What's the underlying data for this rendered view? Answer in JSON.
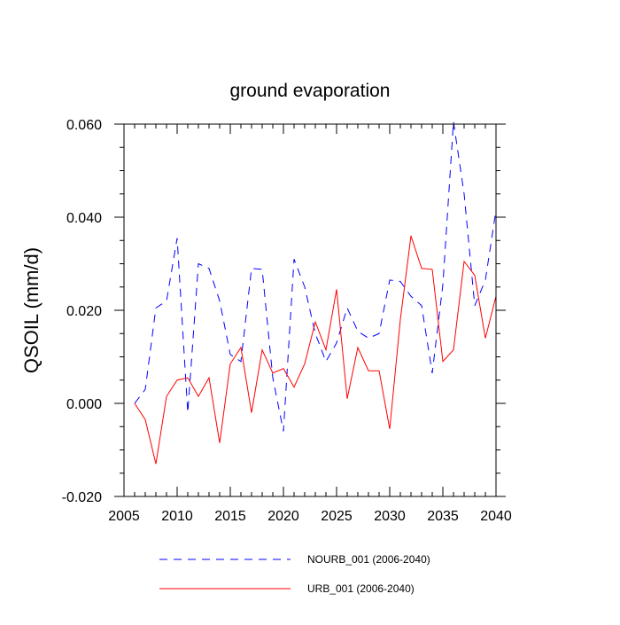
{
  "chart_data": {
    "type": "line",
    "title": "ground evaporation",
    "xlabel": "",
    "ylabel": "QSOIL  (mm/d)",
    "xlim": [
      2005,
      2040
    ],
    "ylim": [
      -0.02,
      0.06
    ],
    "xticks": [
      2005,
      2010,
      2015,
      2020,
      2025,
      2030,
      2035,
      2040
    ],
    "xtick_labels": [
      "2005",
      "2010",
      "2015",
      "2020",
      "2025",
      "2030",
      "2035",
      "2040"
    ],
    "yticks": [
      -0.02,
      0.0,
      0.02,
      0.04,
      0.06
    ],
    "ytick_labels": [
      "-0.020",
      "0.000",
      "0.020",
      "0.040",
      "0.060"
    ],
    "grid": false,
    "legend_position": "bottom",
    "x": [
      2006,
      2007,
      2008,
      2009,
      2010,
      2011,
      2012,
      2013,
      2014,
      2015,
      2016,
      2017,
      2018,
      2019,
      2020,
      2021,
      2022,
      2023,
      2024,
      2025,
      2026,
      2027,
      2028,
      2029,
      2030,
      2031,
      2032,
      2033,
      2034,
      2035,
      2036,
      2037,
      2038,
      2039,
      2040
    ],
    "series": [
      {
        "name": "NOURB_001 (2006-2040)",
        "color": "#0000ff",
        "style": "dashed",
        "values": [
          0.0,
          0.003,
          0.0205,
          0.022,
          0.0355,
          -0.002,
          0.03,
          0.029,
          0.022,
          0.0105,
          0.009,
          0.029,
          0.0288,
          0.0055,
          -0.006,
          0.031,
          0.025,
          0.015,
          0.009,
          0.013,
          0.0205,
          0.0155,
          0.014,
          0.015,
          0.0265,
          0.0262,
          0.023,
          0.021,
          0.0065,
          0.0255,
          0.0605,
          0.045,
          0.021,
          0.0265,
          0.0415
        ]
      },
      {
        "name": "URB_001 (2006-2040)",
        "color": "#ff0000",
        "style": "solid",
        "values": [
          0.0,
          -0.0035,
          -0.013,
          0.0015,
          0.005,
          0.0055,
          0.0015,
          0.0055,
          -0.0085,
          0.0085,
          0.012,
          -0.002,
          0.0115,
          0.0065,
          0.0075,
          0.0035,
          0.0085,
          0.0175,
          0.0115,
          0.0245,
          0.001,
          0.012,
          0.007,
          0.007,
          -0.0055,
          0.018,
          0.036,
          0.029,
          0.0288,
          0.009,
          0.0115,
          0.0305,
          0.0275,
          0.014,
          0.023
        ]
      }
    ]
  }
}
